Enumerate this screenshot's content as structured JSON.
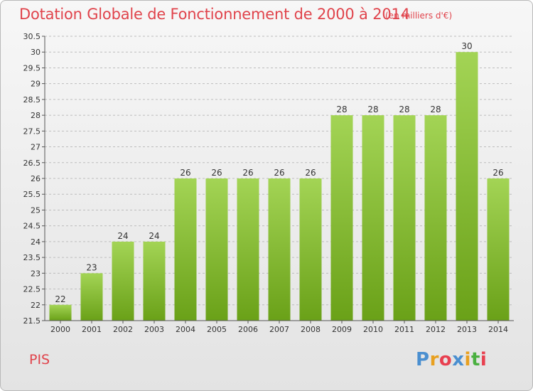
{
  "header": {
    "title": "Dotation Globale de Fonctionnement de 2000 à 2014",
    "unit": "(en milliers d'€)"
  },
  "footer": {
    "commune": "PIS",
    "logo_text": "Proxiti",
    "logo_colors": [
      "#4a8fd0",
      "#e8a020",
      "#e84050",
      "#4a8fd0",
      "#e8a020",
      "#4ab040",
      "#e84050"
    ]
  },
  "colors": {
    "bar_top": "#a3d455",
    "bar_bottom": "#6aa118",
    "axis": "#555555",
    "grid": "#bdbdbd",
    "text": "#333333",
    "title": "#e0434b"
  },
  "chart_data": {
    "type": "bar",
    "title": "Dotation Globale de Fonctionnement de 2000 à 2014",
    "subtitle": "(en milliers d'€)",
    "xlabel": "",
    "ylabel": "",
    "categories": [
      "2000",
      "2001",
      "2002",
      "2003",
      "2004",
      "2005",
      "2006",
      "2007",
      "2008",
      "2009",
      "2010",
      "2011",
      "2012",
      "2013",
      "2014"
    ],
    "values": [
      22,
      23,
      24,
      24,
      26,
      26,
      26,
      26,
      26,
      28,
      28,
      28,
      28,
      30,
      26
    ],
    "ylim": [
      21.5,
      30.5
    ],
    "yticks": [
      "21.5",
      "22",
      "22.5",
      "23",
      "23.5",
      "24",
      "24.5",
      "25",
      "25.5",
      "26",
      "26.5",
      "27",
      "27.5",
      "28",
      "28.5",
      "29",
      "29.5",
      "30",
      "30.5"
    ],
    "grid": "horizontal dashed",
    "legend": "none"
  }
}
